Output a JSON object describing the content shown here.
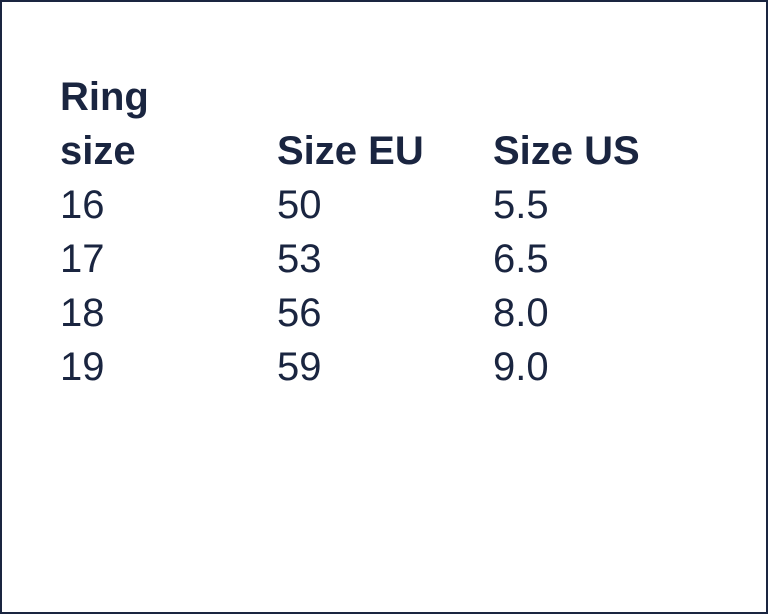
{
  "table": {
    "headers": [
      "Ring size",
      "Size EU",
      "Size US"
    ],
    "rows": [
      [
        "16",
        "50",
        "5.5"
      ],
      [
        "17",
        "53",
        "6.5"
      ],
      [
        "18",
        "56",
        "8.0"
      ],
      [
        "19",
        "59",
        "9.0"
      ]
    ]
  },
  "colors": {
    "text": "#1a2540",
    "border": "#1a2540",
    "background": "#ffffff"
  }
}
